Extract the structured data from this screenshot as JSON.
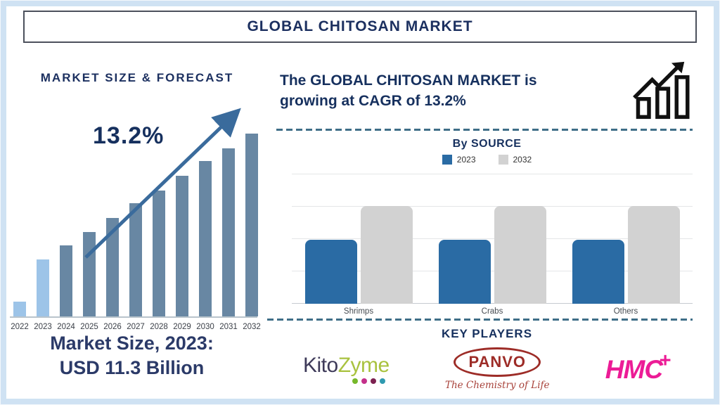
{
  "page": {
    "title": "GLOBAL CHITOSAN MARKET"
  },
  "left_panel": {
    "heading": "MARKET SIZE & FORECAST",
    "cagr_annotation": "13.2%",
    "market_size_line1": "Market Size, 2023:",
    "market_size_line2": "USD 11.3 Billion"
  },
  "right_panel": {
    "growth_line1": "The GLOBAL CHITOSAN MARKET is",
    "growth_line2": "growing at CAGR of 13.2%",
    "by_source_heading": "By SOURCE",
    "key_players_heading": "KEY PLAYERS"
  },
  "key_players": {
    "kitozyme": {
      "name_part1": "Kito",
      "name_part2": "Zyme",
      "part1_color": "#3e3a59",
      "part2_color": "#a9c23f",
      "dot_colors": [
        "#76b82a",
        "#c4308a",
        "#7c2150",
        "#2f9ab0"
      ]
    },
    "panvo": {
      "name": "PANVO",
      "tagline": "The Chemistry of Life",
      "color": "#9d2c27"
    },
    "hmc": {
      "name": "HMC",
      "plus": "+",
      "color": "#ec1c96"
    }
  },
  "chart_data": [
    {
      "type": "bar",
      "title": "MARKET SIZE & FORECAST",
      "categories": [
        "2022",
        "2023",
        "2024",
        "2025",
        "2026",
        "2027",
        "2028",
        "2029",
        "2030",
        "2031",
        "2032"
      ],
      "values_pct_of_max": [
        8,
        31,
        39,
        46,
        54,
        62,
        69,
        77,
        85,
        92,
        100
      ],
      "value_axis_visible": false,
      "annotation": "13.2%",
      "annotation_meaning": "CAGR trend arrow over bars",
      "reference_point": "2023 = USD 11.3 Billion",
      "bar_color_default": "#6887a3",
      "bar_color_highlight": "#9dc4e8",
      "highlight_categories": [
        "2022",
        "2023"
      ],
      "xlabel": "",
      "ylabel": ""
    },
    {
      "type": "bar",
      "title": "By SOURCE",
      "categories": [
        "Shrimps",
        "Crabs",
        "Others"
      ],
      "series": [
        {
          "name": "2023",
          "color": "#2a6ba4",
          "values_pct": [
            49,
            49,
            49
          ]
        },
        {
          "name": "2032",
          "color": "#d2d2d2",
          "values_pct": [
            75,
            75,
            75
          ]
        }
      ],
      "ylim_pct": [
        0,
        100
      ],
      "grid": true,
      "legend_position": "top",
      "xlabel": "",
      "ylabel": ""
    }
  ],
  "colors": {
    "navy_text": "#1c3060",
    "trend_arrow": "#3a6b9c",
    "dashed_divider": "#3f6e88",
    "frame": "#cfe2f3",
    "axis_line": "#b9c4cc",
    "gridline": "#e4e6e8",
    "icon_stroke": "#111111"
  }
}
